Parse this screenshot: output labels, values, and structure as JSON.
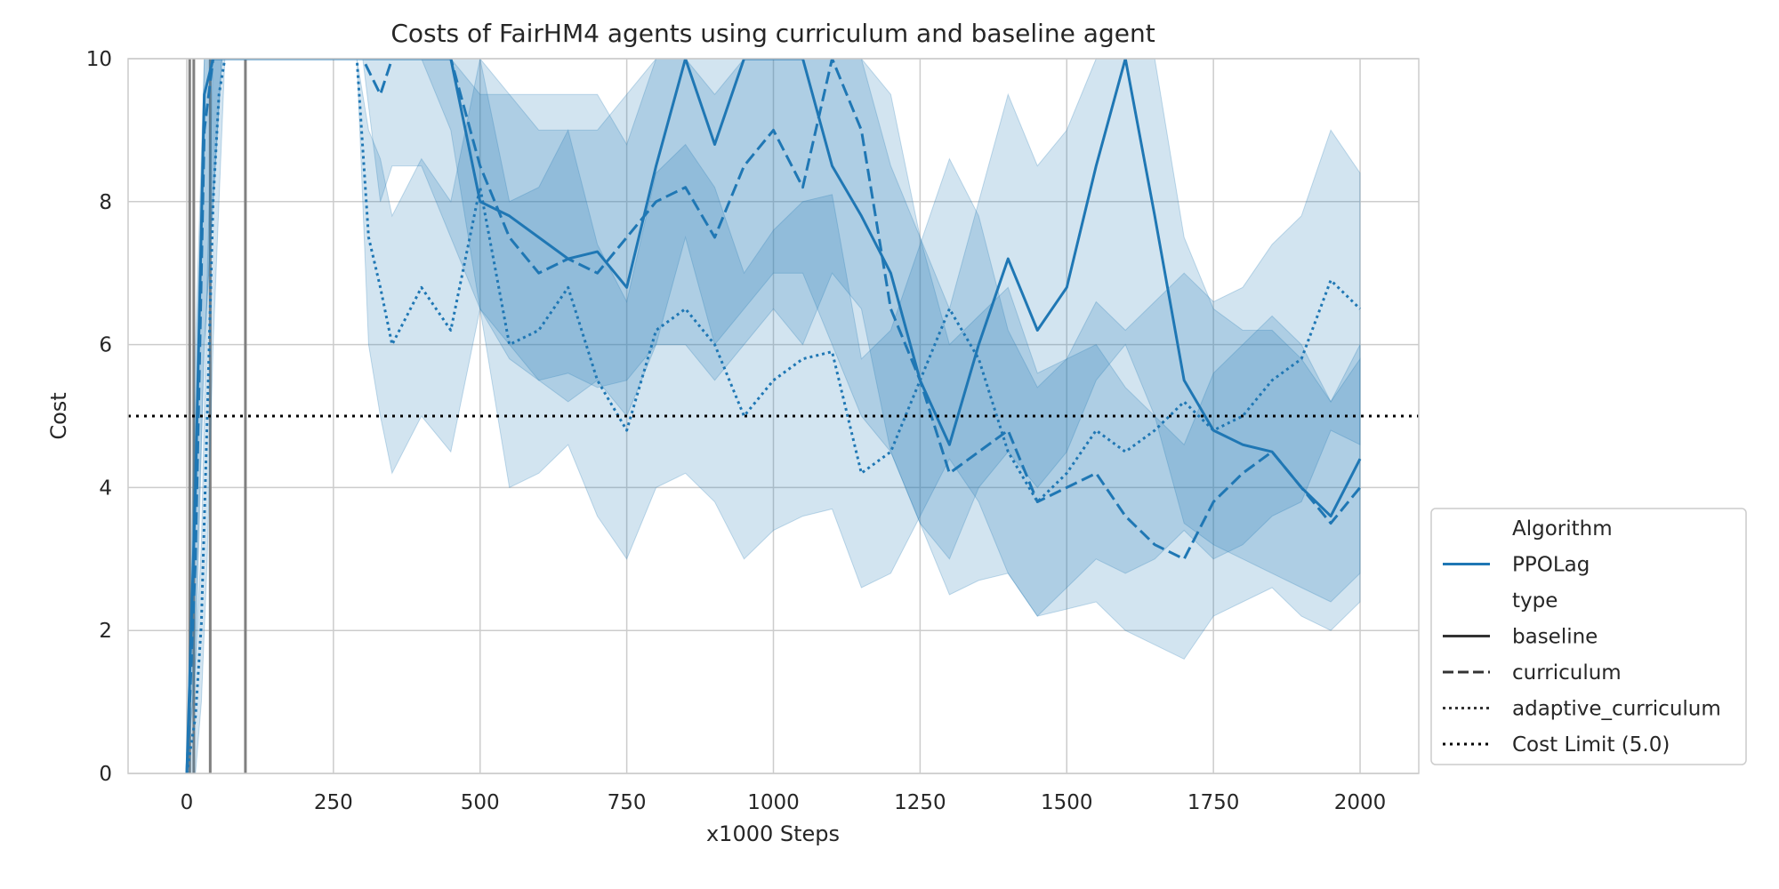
{
  "chart_data": {
    "type": "line",
    "title": "Costs of FairHM4 agents using curriculum and baseline agent",
    "xlabel": "x1000 Steps",
    "ylabel": "Cost",
    "xlim": [
      -100,
      2100
    ],
    "ylim": [
      0,
      10
    ],
    "x_ticks": [
      0,
      250,
      500,
      750,
      1000,
      1250,
      1500,
      1750,
      2000
    ],
    "y_ticks": [
      0,
      2,
      4,
      6,
      8,
      10
    ],
    "grid": true,
    "cost_limit": 5.0,
    "colors": {
      "series": "#1f77b4",
      "band": "#1f77b4",
      "limit": "#000000",
      "vline": "#808080",
      "grid": "#cccccc"
    },
    "vertical_lines_x": [
      5,
      12,
      40,
      100
    ],
    "series": [
      {
        "algorithm": "PPOLag",
        "type": "baseline",
        "style": "solid",
        "x": [
          0,
          15,
          30,
          45,
          60,
          75,
          90,
          250,
          300,
          350,
          400,
          450,
          500,
          550,
          600,
          650,
          700,
          750,
          800,
          850,
          900,
          950,
          1000,
          1050,
          1100,
          1150,
          1200,
          1250,
          1300,
          1350,
          1400,
          1450,
          1500,
          1550,
          1600,
          1650,
          1700,
          1750,
          1800,
          1850,
          1900,
          1950,
          2000
        ],
        "y": [
          0.0,
          4.0,
          9.5,
          10.0,
          10.0,
          10.0,
          10.0,
          10.0,
          10.0,
          10.0,
          10.0,
          10.0,
          8.0,
          7.8,
          7.5,
          7.2,
          7.3,
          6.8,
          8.5,
          10.0,
          8.8,
          10.0,
          10.0,
          10.0,
          8.5,
          7.8,
          7.0,
          5.5,
          4.6,
          6.0,
          7.2,
          6.2,
          6.8,
          8.5,
          10.0,
          7.8,
          5.5,
          4.8,
          4.6,
          4.5,
          4.0,
          3.6,
          4.4
        ],
        "ci_low": [
          0.0,
          2.0,
          6.0,
          8.0,
          10.0,
          10.0,
          10.0,
          10.0,
          10.0,
          10.0,
          10.0,
          9.0,
          6.5,
          6.0,
          5.5,
          5.2,
          5.5,
          5.0,
          6.0,
          7.5,
          6.0,
          6.5,
          7.0,
          7.0,
          6.0,
          5.0,
          4.5,
          3.5,
          3.0,
          4.0,
          4.5,
          4.0,
          4.5,
          5.5,
          6.0,
          5.0,
          3.5,
          3.2,
          3.0,
          2.8,
          2.6,
          2.4,
          2.8
        ],
        "ci_high": [
          0.0,
          6.0,
          10.0,
          10.0,
          10.0,
          10.0,
          10.0,
          10.0,
          10.0,
          10.0,
          10.0,
          10.0,
          9.5,
          9.5,
          9.5,
          9.5,
          9.5,
          8.8,
          10.0,
          10.0,
          10.0,
          10.0,
          10.0,
          10.0,
          10.0,
          10.0,
          9.5,
          7.5,
          6.5,
          8.0,
          9.5,
          8.5,
          9.0,
          10.0,
          10.0,
          10.0,
          7.5,
          6.5,
          6.2,
          6.2,
          5.8,
          5.2,
          6.0
        ]
      },
      {
        "algorithm": "PPOLag",
        "type": "curriculum",
        "style": "dashed",
        "x": [
          0,
          15,
          30,
          45,
          60,
          75,
          90,
          250,
          300,
          330,
          350,
          400,
          450,
          500,
          550,
          600,
          650,
          700,
          750,
          800,
          850,
          900,
          950,
          1000,
          1050,
          1100,
          1150,
          1200,
          1250,
          1300,
          1350,
          1400,
          1450,
          1500,
          1550,
          1600,
          1650,
          1700,
          1750,
          1800,
          1850,
          1900,
          1950,
          2000
        ],
        "y": [
          0.0,
          3.0,
          9.0,
          10.0,
          10.0,
          10.0,
          10.0,
          10.0,
          10.0,
          9.5,
          10.0,
          10.0,
          10.0,
          8.5,
          7.5,
          7.0,
          7.2,
          7.0,
          7.5,
          8.0,
          8.2,
          7.5,
          8.5,
          9.0,
          8.2,
          10.0,
          9.0,
          6.5,
          5.5,
          4.2,
          4.5,
          4.8,
          3.8,
          4.0,
          4.2,
          3.6,
          3.2,
          3.0,
          3.8,
          4.2,
          4.5,
          4.0,
          3.5,
          4.0
        ],
        "ci_low": [
          0.0,
          1.5,
          6.0,
          8.0,
          10.0,
          10.0,
          10.0,
          10.0,
          10.0,
          8.0,
          8.5,
          8.5,
          7.5,
          6.5,
          5.8,
          5.5,
          5.6,
          5.4,
          5.5,
          6.0,
          6.0,
          5.5,
          6.0,
          6.5,
          6.0,
          7.0,
          6.5,
          4.5,
          3.5,
          2.5,
          2.7,
          2.8,
          2.2,
          2.3,
          2.4,
          2.0,
          1.8,
          1.6,
          2.2,
          2.4,
          2.6,
          2.2,
          2.0,
          2.4
        ],
        "ci_high": [
          0.0,
          5.0,
          10.0,
          10.0,
          10.0,
          10.0,
          10.0,
          10.0,
          10.0,
          10.0,
          10.0,
          10.0,
          10.0,
          10.0,
          9.5,
          9.0,
          9.0,
          9.0,
          9.5,
          10.0,
          10.0,
          9.5,
          10.0,
          10.0,
          10.0,
          10.0,
          10.0,
          8.5,
          7.5,
          6.0,
          6.4,
          6.8,
          5.6,
          5.8,
          6.0,
          5.4,
          5.0,
          4.6,
          5.6,
          6.0,
          6.4,
          6.0,
          5.2,
          5.8
        ]
      },
      {
        "algorithm": "PPOLag",
        "type": "adaptive_curriculum",
        "style": "dotted",
        "x": [
          0,
          15,
          25,
          35,
          45,
          55,
          65,
          70,
          290,
          310,
          330,
          350,
          400,
          450,
          500,
          550,
          600,
          650,
          700,
          750,
          800,
          850,
          900,
          950,
          1000,
          1050,
          1100,
          1150,
          1200,
          1250,
          1300,
          1350,
          1400,
          1450,
          1500,
          1550,
          1600,
          1650,
          1700,
          1750,
          1800,
          1850,
          1900,
          1950,
          2000
        ],
        "y": [
          0.0,
          0.8,
          2.1,
          5.0,
          8.0,
          9.5,
          10.0,
          10.0,
          10.0,
          7.5,
          6.8,
          6.0,
          6.8,
          6.2,
          8.2,
          6.0,
          6.2,
          6.8,
          5.5,
          4.8,
          6.2,
          6.5,
          6.0,
          5.0,
          5.5,
          5.8,
          5.9,
          4.2,
          4.5,
          5.5,
          6.5,
          5.8,
          4.5,
          3.8,
          4.2,
          4.8,
          4.5,
          4.8,
          5.2,
          4.8,
          5.0,
          5.5,
          5.8,
          6.9,
          6.5
        ],
        "ci_low": [
          0.0,
          0.0,
          1.0,
          3.0,
          6.0,
          8.0,
          10.0,
          10.0,
          10.0,
          6.0,
          5.0,
          4.2,
          5.0,
          4.5,
          6.5,
          4.0,
          4.2,
          4.6,
          3.6,
          3.0,
          4.0,
          4.2,
          3.8,
          3.0,
          3.4,
          3.6,
          3.7,
          2.6,
          2.8,
          3.6,
          4.4,
          3.8,
          2.8,
          2.2,
          2.6,
          3.0,
          2.8,
          3.0,
          3.4,
          3.0,
          3.2,
          3.6,
          3.8,
          4.8,
          4.6
        ],
        "ci_high": [
          0.0,
          1.6,
          3.2,
          7.0,
          10.0,
          10.0,
          10.0,
          10.0,
          10.0,
          9.0,
          8.6,
          7.8,
          8.6,
          8.0,
          10.0,
          8.0,
          8.2,
          9.0,
          7.4,
          6.6,
          8.4,
          8.8,
          8.2,
          7.0,
          7.6,
          8.0,
          8.1,
          5.8,
          6.2,
          7.4,
          8.6,
          7.8,
          6.2,
          5.4,
          5.8,
          6.6,
          6.2,
          6.6,
          7.0,
          6.6,
          6.8,
          7.4,
          7.8,
          9.0,
          8.4
        ]
      }
    ]
  },
  "legend": {
    "placement": "lower-right, outside plot",
    "items": [
      {
        "label": "Algorithm",
        "style": "header"
      },
      {
        "label": "PPOLag",
        "style": "solid-blue"
      },
      {
        "label": "type",
        "style": "header"
      },
      {
        "label": "baseline",
        "style": "solid"
      },
      {
        "label": "curriculum",
        "style": "dashed"
      },
      {
        "label": "adaptive_curriculum",
        "style": "dotted"
      },
      {
        "label": "Cost Limit (5.0)",
        "style": "dotted-black"
      }
    ]
  }
}
